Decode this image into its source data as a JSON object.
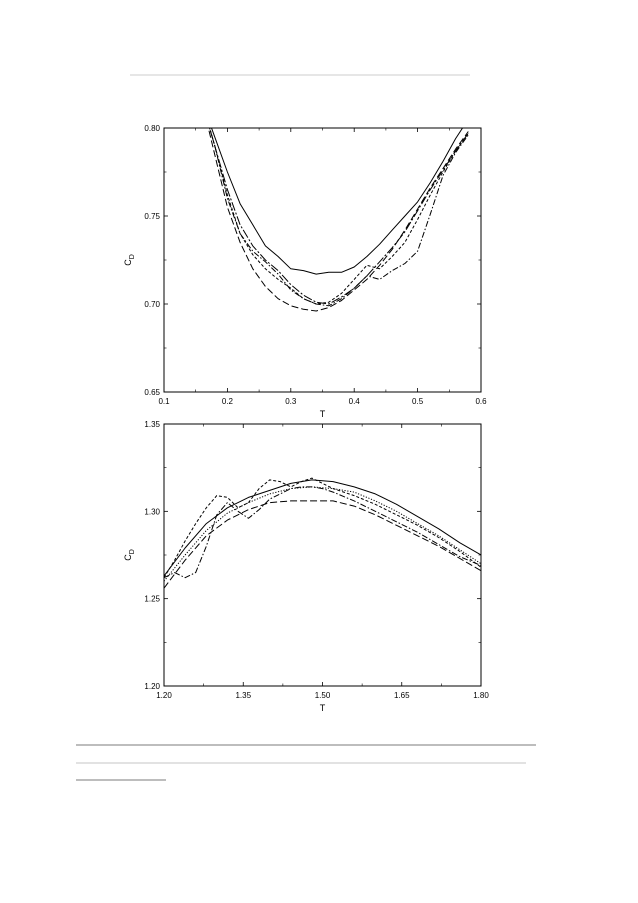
{
  "chart_data": [
    {
      "type": "line",
      "xlabel": "T",
      "ylabel": "C",
      "ylabel_sub": "D",
      "xlim": [
        0.1,
        0.6
      ],
      "ylim": [
        0.65,
        0.8
      ],
      "xticks": [
        "0.1",
        "0.2",
        "0.3",
        "0.4",
        "0.5",
        "0.6"
      ],
      "yticks": [
        "0.65",
        "0.70",
        "0.75",
        "0.80"
      ],
      "grid": false,
      "series": [
        {
          "style": "solid",
          "x": [
            0.16,
            0.18,
            0.2,
            0.22,
            0.24,
            0.26,
            0.28,
            0.3,
            0.32,
            0.34,
            0.36,
            0.38,
            0.4,
            0.42,
            0.44,
            0.46,
            0.48,
            0.5,
            0.52,
            0.54,
            0.56,
            0.58
          ],
          "y": [
            0.815,
            0.795,
            0.775,
            0.757,
            0.745,
            0.733,
            0.727,
            0.72,
            0.719,
            0.717,
            0.718,
            0.718,
            0.721,
            0.727,
            0.734,
            0.742,
            0.75,
            0.758,
            0.769,
            0.781,
            0.794,
            0.805
          ]
        },
        {
          "style": "dashed",
          "x": [
            0.16,
            0.18,
            0.2,
            0.22,
            0.24,
            0.26,
            0.28,
            0.3,
            0.32,
            0.34,
            0.36,
            0.38,
            0.4,
            0.42,
            0.44,
            0.46,
            0.48,
            0.5,
            0.52,
            0.54,
            0.56,
            0.58
          ],
          "y": [
            0.815,
            0.785,
            0.755,
            0.735,
            0.72,
            0.71,
            0.703,
            0.699,
            0.697,
            0.696,
            0.698,
            0.702,
            0.708,
            0.714,
            0.722,
            0.731,
            0.742,
            0.754,
            0.766,
            0.777,
            0.788,
            0.798
          ]
        },
        {
          "style": "short-dashed",
          "x": [
            0.16,
            0.18,
            0.2,
            0.22,
            0.24,
            0.26,
            0.28,
            0.3,
            0.32,
            0.34,
            0.36,
            0.38,
            0.4,
            0.42,
            0.44,
            0.46,
            0.48,
            0.5,
            0.52,
            0.54,
            0.56,
            0.58
          ],
          "y": [
            0.815,
            0.79,
            0.762,
            0.74,
            0.728,
            0.72,
            0.714,
            0.709,
            0.703,
            0.7,
            0.701,
            0.706,
            0.714,
            0.722,
            0.72,
            0.727,
            0.735,
            0.748,
            0.762,
            0.775,
            0.787,
            0.797
          ]
        },
        {
          "style": "dash-dot",
          "x": [
            0.16,
            0.18,
            0.2,
            0.22,
            0.24,
            0.26,
            0.28,
            0.3,
            0.32,
            0.34,
            0.36,
            0.38,
            0.4,
            0.42,
            0.44,
            0.46,
            0.48,
            0.5,
            0.52,
            0.54,
            0.56,
            0.58
          ],
          "y": [
            0.815,
            0.79,
            0.76,
            0.74,
            0.73,
            0.724,
            0.717,
            0.708,
            0.703,
            0.7,
            0.699,
            0.703,
            0.709,
            0.716,
            0.714,
            0.719,
            0.723,
            0.73,
            0.751,
            0.773,
            0.786,
            0.796
          ]
        },
        {
          "style": "long-dash-dot",
          "x": [
            0.16,
            0.18,
            0.2,
            0.22,
            0.24,
            0.26,
            0.28,
            0.3,
            0.32,
            0.34,
            0.36,
            0.38,
            0.4,
            0.42,
            0.44,
            0.46,
            0.48,
            0.5,
            0.52,
            0.54,
            0.56,
            0.58
          ],
          "y": [
            0.815,
            0.79,
            0.765,
            0.745,
            0.733,
            0.725,
            0.719,
            0.711,
            0.705,
            0.701,
            0.7,
            0.704,
            0.709,
            0.716,
            0.724,
            0.732,
            0.741,
            0.753,
            0.765,
            0.776,
            0.787,
            0.797
          ]
        }
      ]
    },
    {
      "type": "line",
      "xlabel": "T",
      "ylabel": "C",
      "ylabel_sub": "D",
      "xlim": [
        1.2,
        1.8
      ],
      "ylim": [
        1.2,
        1.35
      ],
      "xticks": [
        "1.20",
        "1.35",
        "1.50",
        "1.65",
        "1.80"
      ],
      "yticks": [
        "1.20",
        "1.25",
        "1.30",
        "1.35"
      ],
      "grid": false,
      "series": [
        {
          "style": "solid",
          "x": [
            1.2,
            1.24,
            1.28,
            1.32,
            1.36,
            1.4,
            1.44,
            1.48,
            1.52,
            1.56,
            1.6,
            1.64,
            1.68,
            1.72,
            1.76,
            1.8
          ],
          "y": [
            1.263,
            1.279,
            1.293,
            1.302,
            1.308,
            1.312,
            1.316,
            1.318,
            1.317,
            1.314,
            1.31,
            1.304,
            1.297,
            1.29,
            1.282,
            1.275
          ]
        },
        {
          "style": "dashed",
          "x": [
            1.2,
            1.24,
            1.28,
            1.32,
            1.36,
            1.4,
            1.44,
            1.48,
            1.52,
            1.56,
            1.6,
            1.64,
            1.68,
            1.72,
            1.76,
            1.8
          ],
          "y": [
            1.256,
            1.272,
            1.286,
            1.295,
            1.301,
            1.305,
            1.306,
            1.306,
            1.306,
            1.303,
            1.298,
            1.292,
            1.286,
            1.28,
            1.273,
            1.266
          ]
        },
        {
          "style": "short-dashed",
          "x": [
            1.2,
            1.22,
            1.24,
            1.26,
            1.28,
            1.3,
            1.32,
            1.34,
            1.36,
            1.38,
            1.4,
            1.42,
            1.44,
            1.46,
            1.48,
            1.5,
            1.52,
            1.56,
            1.6,
            1.64,
            1.68,
            1.72,
            1.76,
            1.8
          ],
          "y": [
            1.262,
            1.272,
            1.283,
            1.293,
            1.302,
            1.309,
            1.308,
            1.302,
            1.305,
            1.313,
            1.318,
            1.317,
            1.314,
            1.317,
            1.319,
            1.316,
            1.313,
            1.309,
            1.304,
            1.298,
            1.292,
            1.285,
            1.277,
            1.268
          ]
        },
        {
          "style": "dash-dot",
          "x": [
            1.2,
            1.22,
            1.24,
            1.26,
            1.28,
            1.3,
            1.32,
            1.34,
            1.36,
            1.38,
            1.4,
            1.42,
            1.44,
            1.46,
            1.48,
            1.5,
            1.52,
            1.56,
            1.6,
            1.64,
            1.68,
            1.72,
            1.76,
            1.8
          ],
          "y": [
            1.262,
            1.265,
            1.262,
            1.265,
            1.28,
            1.298,
            1.305,
            1.3,
            1.296,
            1.301,
            1.307,
            1.31,
            1.313,
            1.314,
            1.314,
            1.313,
            1.311,
            1.306,
            1.3,
            1.294,
            1.288,
            1.281,
            1.274,
            1.269
          ]
        },
        {
          "style": "dotted",
          "x": [
            1.2,
            1.24,
            1.28,
            1.32,
            1.36,
            1.4,
            1.44,
            1.48,
            1.52,
            1.56,
            1.6,
            1.64,
            1.68,
            1.72,
            1.76,
            1.8
          ],
          "y": [
            1.26,
            1.275,
            1.289,
            1.299,
            1.305,
            1.31,
            1.313,
            1.314,
            1.313,
            1.311,
            1.306,
            1.3,
            1.293,
            1.286,
            1.278,
            1.27
          ]
        }
      ]
    }
  ],
  "caption_note": "blurred caption text (unreadable)"
}
